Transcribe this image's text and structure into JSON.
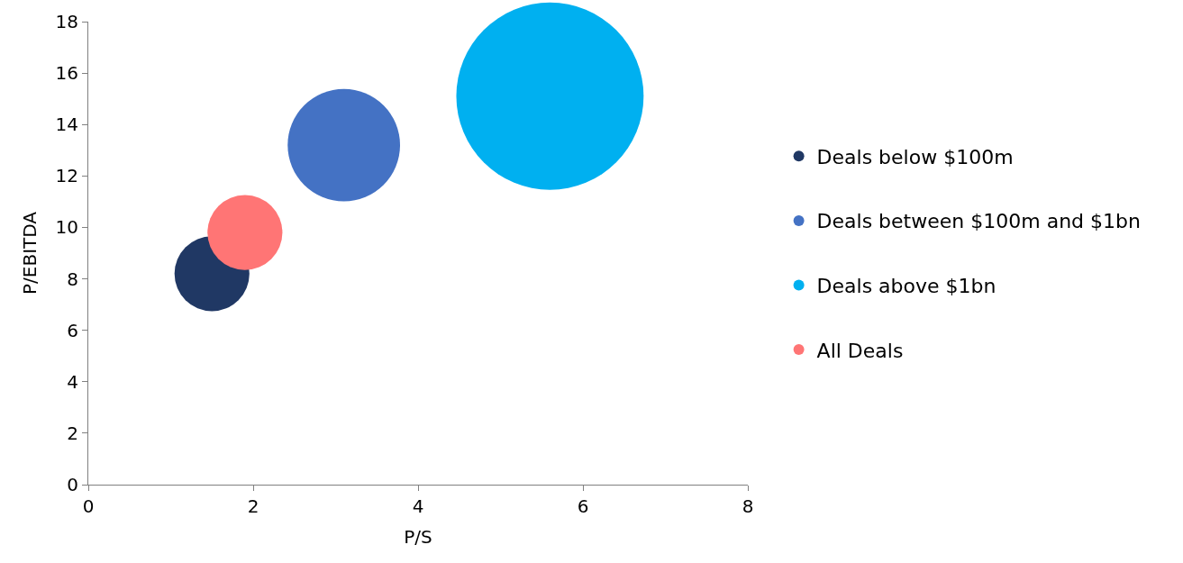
{
  "chart_data": {
    "type": "bubble",
    "xlabel": "P/S",
    "ylabel": "P/EBITDA",
    "xlim": [
      0,
      8
    ],
    "xticks": [
      0,
      2,
      4,
      6,
      8
    ],
    "ylim": [
      0,
      18
    ],
    "yticks": [
      0,
      2,
      4,
      6,
      8,
      10,
      12,
      14,
      16,
      18
    ],
    "legend": "right",
    "series": [
      {
        "name": "Deals below $100m",
        "color": "#203864",
        "x": [
          1.5
        ],
        "values": [
          8.2
        ],
        "sizes": [
          0.16
        ]
      },
      {
        "name": "Deals between $100m and $1bn",
        "color": "#4472c4",
        "x": [
          3.1
        ],
        "values": [
          13.2
        ],
        "sizes": [
          0.36
        ]
      },
      {
        "name": "Deals above $1bn",
        "color": "#00b0f0",
        "x": [
          5.6
        ],
        "values": [
          15.1
        ],
        "sizes": [
          1
        ]
      },
      {
        "name": "All Deals",
        "color": "#ff7575",
        "x": [
          1.9
        ],
        "values": [
          9.8
        ],
        "sizes": [
          0.16
        ]
      }
    ]
  }
}
